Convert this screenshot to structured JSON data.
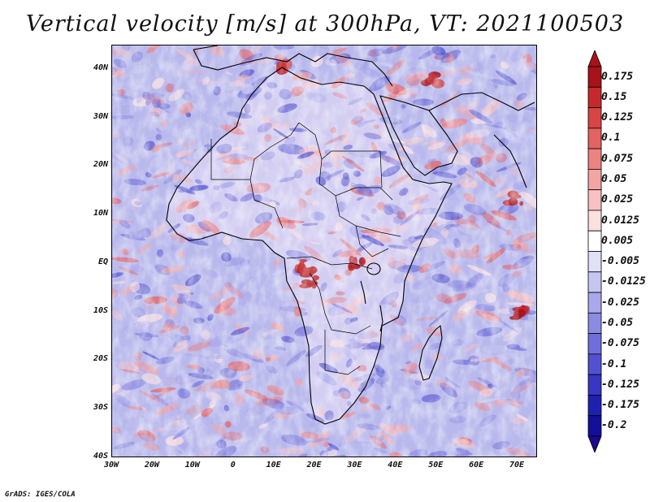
{
  "title": "Vertical velocity [m/s] at 300hPa, VT: 2021100503",
  "footer": "GrADS: IGES/COLA",
  "map": {
    "variable": "Vertical velocity",
    "units": "m/s",
    "level": "300hPa",
    "valid_time": "2021100503",
    "lon_range": [
      -30,
      75
    ],
    "lat_range": [
      -40,
      45
    ],
    "lat_labels": [
      "40N",
      "30N",
      "20N",
      "10N",
      "EQ",
      "10S",
      "20S",
      "30S",
      "40S"
    ],
    "lat_values": [
      40,
      30,
      20,
      10,
      0,
      -10,
      -20,
      -30,
      -40
    ],
    "lon_labels": [
      "30W",
      "20W",
      "10W",
      "0",
      "10E",
      "20E",
      "30E",
      "40E",
      "50E",
      "60E",
      "70E"
    ],
    "lon_values": [
      -30,
      -20,
      -10,
      0,
      10,
      20,
      30,
      40,
      50,
      60,
      70
    ]
  },
  "colorbar": {
    "labels": [
      "0.175",
      "0.15",
      "0.125",
      "0.1",
      "0.075",
      "0.05",
      "0.025",
      "0.0125",
      "0.005",
      "-0.005",
      "-0.0125",
      "-0.025",
      "-0.05",
      "-0.075",
      "-0.1",
      "-0.125",
      "-0.175",
      "-0.2"
    ],
    "colors": [
      "#a8121a",
      "#c6292d",
      "#d74545",
      "#e36262",
      "#ec8383",
      "#f3a4a4",
      "#f8c2c2",
      "#fce0e0",
      "#ffffff",
      "#e0e0f8",
      "#c6c6f0",
      "#a8a8ea",
      "#8b8be2",
      "#6f6fda",
      "#5252d0",
      "#3737c2",
      "#2020b0",
      "#120f98"
    ],
    "top_color": "#a8121a",
    "bottom_color": "#1a0a8c"
  },
  "colors": {
    "ocean_base": "#b8b8ec",
    "land_base": "#ddd6f4",
    "coastline": "#000000"
  }
}
